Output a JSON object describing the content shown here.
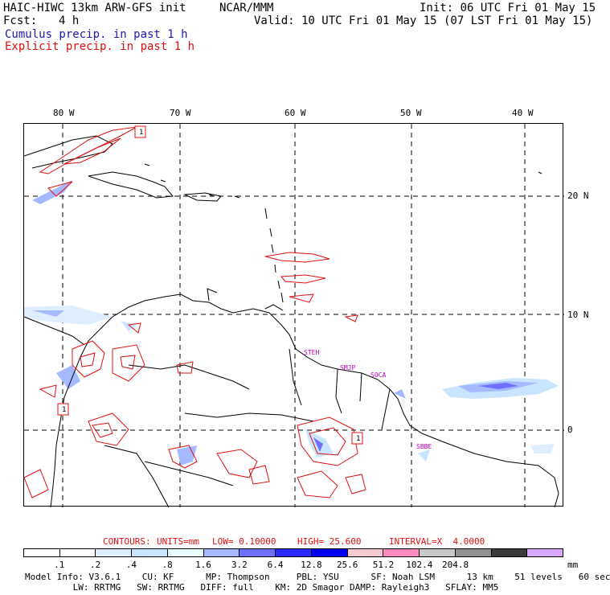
{
  "header": {
    "model": "HAIC-HIWC 13km ARW-GFS init",
    "org": "NCAR/MMM",
    "init": "Init: 06 UTC Fri 01 May 15",
    "fcst_label": "Fcst:",
    "fcst_value": "4 h",
    "valid": "Valid: 10 UTC Fri 01 May 15 (07 LST Fri 01 May 15)",
    "cumulus": "Cumulus precip. in past 1 h",
    "explicit": "Explicit precip. in past 1 h"
  },
  "axes": {
    "lon_labels": [
      "80 W",
      "70 W",
      "60 W",
      "50 W",
      "40 W"
    ],
    "lat_labels": [
      "20 N",
      "10 N",
      "0"
    ]
  },
  "stations": [
    "STEH",
    "SMJP",
    "SOCA",
    "SBBE"
  ],
  "markers": [
    "1",
    "1",
    "1"
  ],
  "contours": {
    "label": "CONTOURS:",
    "units": "UNITS=mm",
    "low": "LOW= 0.10000",
    "high": "HIGH= 25.600",
    "interval": "INTERVAL=X  4.0000"
  },
  "colorbar": {
    "labels": [
      ".1",
      ".2",
      ".4",
      ".8",
      "1.6",
      "3.2",
      "6.4",
      "12.8",
      "25.6",
      "51.2",
      "102.4",
      "204.8"
    ],
    "unit": "mm",
    "colors": [
      "#ffffff",
      "#ffffff",
      "#dfeeff",
      "#c8e4ff",
      "#eafdfd",
      "#a6b8ff",
      "#6f6fff",
      "#2a2aff",
      "#0000ee",
      "#f6c8d0",
      "#ff8ac0",
      "#c8c8c8",
      "#909090",
      "#3a3a3a",
      "#d8a8ff"
    ]
  },
  "footer": {
    "line1": "Model Info: V3.6.1    CU: KF      MP: Thompson     PBL: YSU      SF: Noah LSM      13 km    51 levels   60 sec",
    "line2": "         LW: RRTMG   SW: RRTMG   DIFF: full    KM: 2D Smagor DAMP: Rayleigh3   SFLAY: MM5"
  }
}
